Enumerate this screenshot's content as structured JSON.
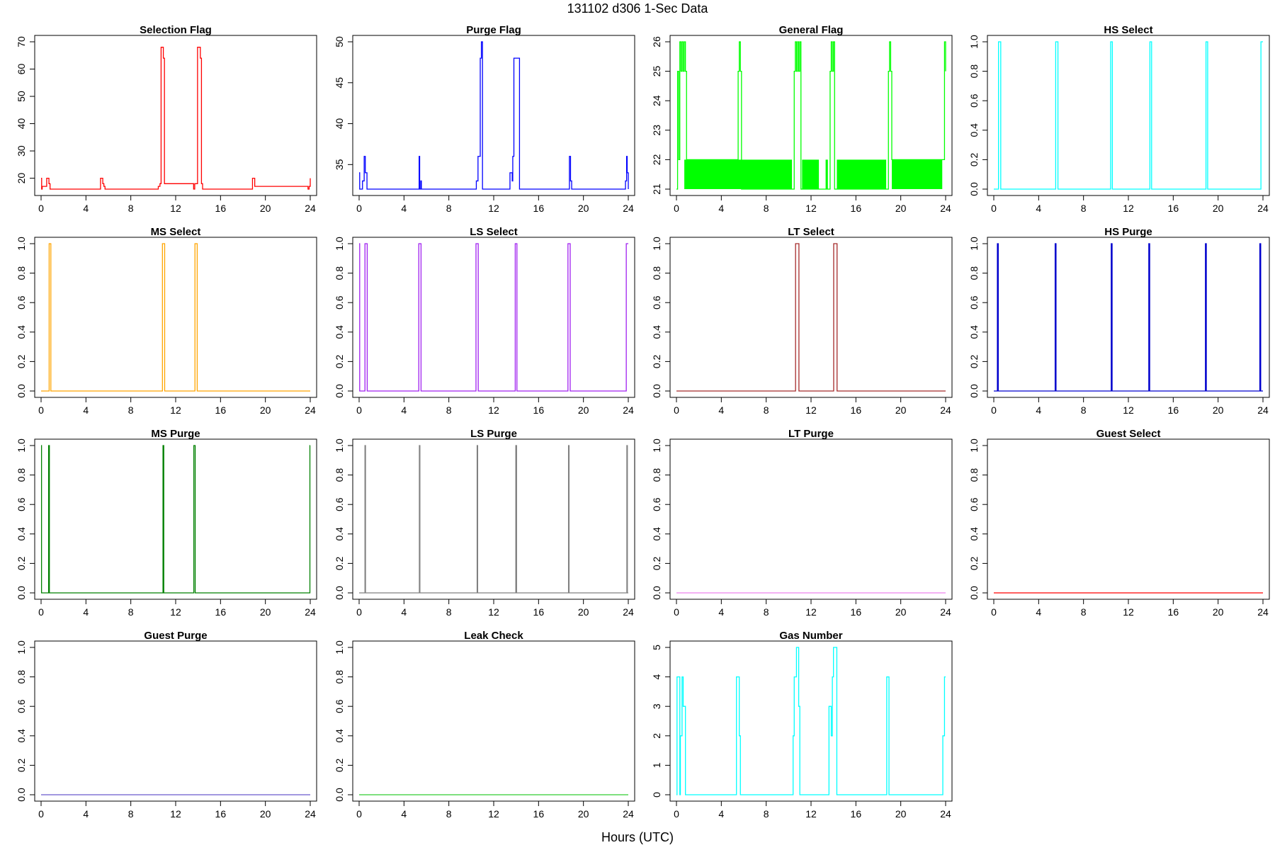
{
  "figure": {
    "title": "131102   d306   1-Sec Data",
    "xlabel": "Hours (UTC)"
  },
  "chart_data": [
    {
      "type": "line",
      "title": "Selection Flag",
      "color": "#ff0000",
      "xlim": [
        0,
        24
      ],
      "xticks": [
        0,
        4,
        8,
        12,
        16,
        20,
        24
      ],
      "ylim": [
        16,
        70
      ],
      "yticks": [
        20,
        30,
        40,
        50,
        60,
        70
      ],
      "x": [
        0,
        0.05,
        0.1,
        0.5,
        0.55,
        0.7,
        0.8,
        0.9,
        5.3,
        5.4,
        5.5,
        5.6,
        5.7,
        10.4,
        10.45,
        10.6,
        10.7,
        10.8,
        10.9,
        11.0,
        13.6,
        13.7,
        13.85,
        13.95,
        14.1,
        14.2,
        14.3,
        14.4,
        18.8,
        18.85,
        18.95,
        19.05,
        23.8,
        23.9,
        24
      ],
      "values": [
        20,
        16,
        17,
        20,
        20,
        18,
        16,
        16,
        20,
        20,
        18,
        17,
        16,
        16,
        17,
        18,
        68,
        68,
        64,
        18,
        16,
        18,
        18,
        68,
        68,
        64,
        18,
        16,
        16,
        20,
        20,
        17,
        16,
        17,
        20
      ]
    },
    {
      "type": "line",
      "title": "Purge Flag",
      "color": "#0000ff",
      "xlim": [
        0,
        24
      ],
      "xticks": [
        0,
        4,
        8,
        12,
        16,
        20,
        24
      ],
      "ylim": [
        32,
        50
      ],
      "yticks": [
        35,
        40,
        45,
        50
      ],
      "x": [
        0,
        0.05,
        0.1,
        0.3,
        0.35,
        0.45,
        0.5,
        0.55,
        0.6,
        0.7,
        0.8,
        5.3,
        5.35,
        5.4,
        5.5,
        5.55,
        10.4,
        10.45,
        10.5,
        10.6,
        10.8,
        10.9,
        11.0,
        13.4,
        13.45,
        13.55,
        13.65,
        13.7,
        13.8,
        14.2,
        14.3,
        18.7,
        18.75,
        18.85,
        18.95,
        23.7,
        23.75,
        23.85,
        23.9,
        24
      ],
      "values": [
        34,
        32,
        32,
        33,
        33,
        36,
        36,
        34,
        34,
        32,
        32,
        32,
        36,
        32,
        33,
        32,
        32,
        33,
        33,
        36,
        48,
        50,
        32,
        32,
        34,
        34,
        33,
        36,
        48,
        48,
        32,
        32,
        36,
        33,
        32,
        32,
        33,
        36,
        34,
        32
      ]
    },
    {
      "type": "line",
      "title": "General Flag",
      "color": "#00ff00",
      "xlim": [
        0,
        24
      ],
      "xticks": [
        0,
        4,
        8,
        12,
        16,
        20,
        24
      ],
      "ylim": [
        21,
        26
      ],
      "yticks": [
        21,
        22,
        23,
        24,
        25,
        26
      ],
      "x": [
        0,
        0.1,
        0.2,
        0.3,
        0.4,
        0.5,
        0.6,
        0.7,
        0.8,
        0.9,
        5.4,
        5.5,
        5.6,
        5.7,
        5.8,
        10.4,
        10.5,
        10.6,
        10.7,
        10.8,
        10.9,
        11.0,
        11.1,
        13.6,
        13.7,
        13.8,
        13.9,
        14.0,
        14.1,
        18.8,
        18.9,
        19.0,
        19.1,
        19.2,
        23.8,
        23.9,
        24
      ],
      "values": [
        21,
        25,
        22,
        26,
        25,
        26,
        25,
        26,
        25,
        22,
        22,
        25,
        26,
        25,
        21,
        21,
        25,
        26,
        25,
        26,
        25,
        26,
        21,
        21,
        25,
        26,
        25,
        26,
        21,
        21,
        25,
        26,
        25,
        22,
        22,
        26,
        25
      ],
      "bands": [
        {
          "x0": 0.7,
          "x1": 10.3,
          "y0": 21,
          "y1": 22
        },
        {
          "x0": 11.2,
          "x1": 12.7,
          "y0": 21,
          "y1": 22
        },
        {
          "x0": 13.3,
          "x1": 13.5,
          "y0": 21,
          "y1": 22
        },
        {
          "x0": 14.3,
          "x1": 18.7,
          "y0": 21,
          "y1": 22
        },
        {
          "x0": 19.2,
          "x1": 23.7,
          "y0": 21,
          "y1": 22
        }
      ]
    },
    {
      "type": "line",
      "title": "HS Select",
      "color": "#00ffff",
      "xlim": [
        0,
        24
      ],
      "xticks": [
        0,
        4,
        8,
        12,
        16,
        20,
        24
      ],
      "ylim": [
        0,
        1
      ],
      "yticks": [
        0,
        0.2,
        0.4,
        0.6,
        0.8,
        1
      ],
      "x": [
        0,
        0.4,
        0.42,
        0.6,
        0.62,
        5.5,
        5.52,
        5.7,
        5.72,
        10.4,
        10.42,
        10.55,
        10.57,
        13.9,
        13.92,
        14.05,
        14.07,
        18.9,
        18.92,
        19.05,
        19.07,
        23.8,
        23.82,
        24
      ],
      "values": [
        0,
        0,
        1,
        1,
        0,
        0,
        1,
        1,
        0,
        0,
        1,
        1,
        0,
        0,
        1,
        1,
        0,
        0,
        1,
        1,
        0,
        0,
        1,
        1
      ]
    },
    {
      "type": "line",
      "title": "MS Select",
      "color": "#ffa500",
      "xlim": [
        0,
        24
      ],
      "xticks": [
        0,
        4,
        8,
        12,
        16,
        20,
        24
      ],
      "ylim": [
        0,
        1
      ],
      "yticks": [
        0,
        0.2,
        0.4,
        0.6,
        0.8,
        1
      ],
      "x": [
        0,
        0.7,
        0.72,
        0.85,
        0.87,
        10.8,
        10.82,
        11.0,
        11.02,
        13.7,
        13.72,
        13.9,
        13.92,
        24
      ],
      "values": [
        0,
        0,
        1,
        1,
        0,
        0,
        1,
        1,
        0,
        0,
        1,
        1,
        0,
        0
      ]
    },
    {
      "type": "line",
      "title": "LS Select",
      "color": "#a020f0",
      "xlim": [
        0,
        24
      ],
      "xticks": [
        0,
        4,
        8,
        12,
        16,
        20,
        24
      ],
      "ylim": [
        0,
        1
      ],
      "yticks": [
        0,
        0.2,
        0.4,
        0.6,
        0.8,
        1
      ],
      "x": [
        0,
        0.02,
        0.05,
        0.07,
        0.5,
        0.52,
        0.7,
        0.72,
        5.3,
        5.32,
        5.5,
        5.52,
        10.4,
        10.42,
        10.6,
        10.62,
        13.9,
        13.92,
        14.05,
        14.07,
        18.6,
        18.62,
        18.8,
        18.82,
        23.8,
        23.82,
        24
      ],
      "values": [
        1,
        1,
        0,
        0,
        0,
        1,
        1,
        0,
        0,
        1,
        1,
        0,
        0,
        1,
        1,
        0,
        0,
        1,
        1,
        0,
        0,
        1,
        1,
        0,
        0,
        1,
        1
      ]
    },
    {
      "type": "line",
      "title": "LT Select",
      "color": "#a52a2a",
      "xlim": [
        0,
        24
      ],
      "xticks": [
        0,
        4,
        8,
        12,
        16,
        20,
        24
      ],
      "ylim": [
        0,
        1
      ],
      "yticks": [
        0,
        0.2,
        0.4,
        0.6,
        0.8,
        1
      ],
      "x": [
        0,
        10.6,
        10.62,
        10.9,
        10.92,
        14.0,
        14.02,
        14.3,
        14.32,
        24
      ],
      "values": [
        0,
        0,
        1,
        1,
        0,
        0,
        1,
        1,
        0,
        0
      ]
    },
    {
      "type": "line",
      "title": "HS Purge",
      "color": "#0000cd",
      "xlim": [
        0,
        24
      ],
      "xticks": [
        0,
        4,
        8,
        12,
        16,
        20,
        24
      ],
      "ylim": [
        0,
        1
      ],
      "yticks": [
        0,
        0.2,
        0.4,
        0.6,
        0.8,
        1
      ],
      "x": [
        0,
        0.3,
        0.32,
        0.38,
        0.4,
        5.45,
        5.47,
        5.53,
        5.55,
        10.45,
        10.47,
        10.53,
        10.55,
        13.8,
        13.82,
        13.88,
        13.9,
        18.85,
        18.87,
        18.93,
        18.95,
        23.7,
        23.72,
        23.78,
        23.8,
        24
      ],
      "values": [
        0,
        0,
        1,
        1,
        0,
        0,
        1,
        1,
        0,
        0,
        1,
        1,
        0,
        0,
        1,
        1,
        0,
        0,
        1,
        1,
        0,
        0,
        1,
        1,
        0,
        0
      ]
    },
    {
      "type": "line",
      "title": "MS Purge",
      "color": "#008000",
      "xlim": [
        0,
        24
      ],
      "xticks": [
        0,
        4,
        8,
        12,
        16,
        20,
        24
      ],
      "ylim": [
        0,
        1
      ],
      "yticks": [
        0,
        0.2,
        0.4,
        0.6,
        0.8,
        1
      ],
      "x": [
        0,
        0.02,
        0.04,
        0.65,
        0.67,
        0.72,
        0.74,
        10.85,
        10.87,
        10.92,
        10.94,
        13.6,
        13.62,
        13.72,
        13.74,
        23.95,
        23.97,
        24
      ],
      "values": [
        1,
        1,
        0,
        0,
        1,
        1,
        0,
        0,
        1,
        1,
        0,
        0,
        1,
        1,
        0,
        0,
        1,
        1
      ]
    },
    {
      "type": "line",
      "title": "LS Purge",
      "color": "#808080",
      "xlim": [
        0,
        24
      ],
      "xticks": [
        0,
        4,
        8,
        12,
        16,
        20,
        24
      ],
      "ylim": [
        0,
        1
      ],
      "yticks": [
        0,
        0.2,
        0.4,
        0.6,
        0.8,
        1
      ],
      "x": [
        0,
        0.5,
        0.52,
        0.55,
        0.57,
        5.35,
        5.37,
        5.4,
        5.42,
        10.5,
        10.52,
        10.55,
        10.57,
        13.95,
        13.97,
        14.02,
        14.04,
        18.65,
        18.67,
        18.7,
        18.72,
        23.85,
        23.87,
        23.9,
        23.92,
        24
      ],
      "values": [
        0,
        0,
        1,
        1,
        0,
        0,
        1,
        1,
        0,
        0,
        1,
        1,
        0,
        0,
        1,
        1,
        0,
        0,
        1,
        1,
        0,
        0,
        1,
        1,
        0,
        0
      ]
    },
    {
      "type": "line",
      "title": "LT Purge",
      "color": "#ee82ee",
      "xlim": [
        0,
        24
      ],
      "xticks": [
        0,
        4,
        8,
        12,
        16,
        20,
        24
      ],
      "ylim": [
        0,
        1
      ],
      "yticks": [
        0,
        0.2,
        0.4,
        0.6,
        0.8,
        1
      ],
      "x": [
        0,
        24
      ],
      "values": [
        0,
        0
      ]
    },
    {
      "type": "line",
      "title": "Guest Select",
      "color": "#ff0000",
      "xlim": [
        0,
        24
      ],
      "xticks": [
        0,
        4,
        8,
        12,
        16,
        20,
        24
      ],
      "ylim": [
        0,
        1
      ],
      "yticks": [
        0,
        0.2,
        0.4,
        0.6,
        0.8,
        1
      ],
      "x": [
        0,
        24
      ],
      "values": [
        0,
        0
      ]
    },
    {
      "type": "line",
      "title": "Guest Purge",
      "color": "#6a5acd",
      "xlim": [
        0,
        24
      ],
      "xticks": [
        0,
        4,
        8,
        12,
        16,
        20,
        24
      ],
      "ylim": [
        0,
        1
      ],
      "yticks": [
        0,
        0.2,
        0.4,
        0.6,
        0.8,
        1
      ],
      "x": [
        0,
        24
      ],
      "values": [
        0,
        0
      ]
    },
    {
      "type": "line",
      "title": "Leak Check",
      "color": "#32cd32",
      "xlim": [
        0,
        24
      ],
      "xticks": [
        0,
        4,
        8,
        12,
        16,
        20,
        24
      ],
      "ylim": [
        0,
        1
      ],
      "yticks": [
        0,
        0.2,
        0.4,
        0.6,
        0.8,
        1
      ],
      "x": [
        0,
        24
      ],
      "values": [
        0,
        0
      ]
    },
    {
      "type": "line",
      "title": "Gas Number",
      "color": "#00ffff",
      "xlim": [
        0,
        24
      ],
      "xticks": [
        0,
        4,
        8,
        12,
        16,
        20,
        24
      ],
      "ylim": [
        0,
        5
      ],
      "yticks": [
        0,
        1,
        2,
        3,
        4,
        5
      ],
      "x": [
        0,
        0.05,
        0.1,
        0.3,
        0.35,
        0.5,
        0.55,
        0.6,
        0.7,
        0.8,
        0.9,
        5.3,
        5.35,
        5.5,
        5.6,
        5.7,
        10.35,
        10.4,
        10.5,
        10.55,
        10.7,
        10.8,
        10.9,
        11.0,
        13.5,
        13.6,
        13.7,
        13.8,
        13.9,
        14.0,
        14.2,
        14.3,
        18.7,
        18.75,
        18.85,
        18.95,
        23.7,
        23.75,
        23.85,
        23.9,
        24
      ],
      "values": [
        0,
        4,
        4,
        0,
        2,
        4,
        4,
        3,
        3,
        0,
        0,
        0,
        4,
        4,
        2,
        0,
        0,
        2,
        4,
        4,
        5,
        5,
        3,
        0,
        0,
        3,
        3,
        2,
        4,
        5,
        5,
        0,
        0,
        4,
        4,
        0,
        0,
        2,
        2,
        4,
        4
      ]
    }
  ]
}
